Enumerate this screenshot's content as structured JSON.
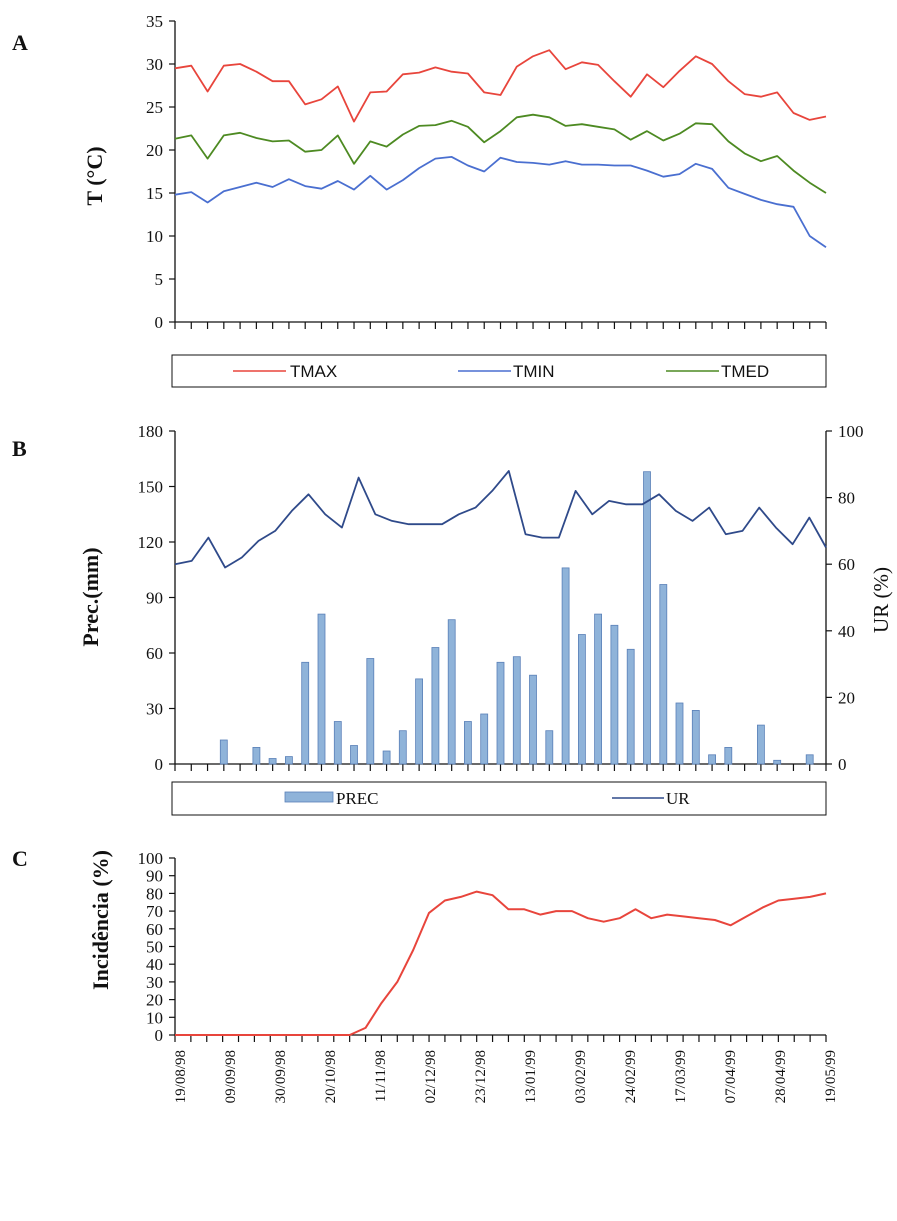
{
  "colors": {
    "tmax": "#e8453c",
    "tmin": "#4a6fd0",
    "tmed": "#4d8a22",
    "ur": "#2f4a8a",
    "prec": "#8fb3d9",
    "incid": "#e8453c"
  },
  "date_labels": [
    "19/08/98",
    "09/09/98",
    "30/09/98",
    "20/10/98",
    "11/11/98",
    "02/12/98",
    "23/12/98",
    "13/01/99",
    "03/02/99",
    "24/02/99",
    "17/03/99",
    "07/04/99",
    "28/04/99",
    "19/05/99"
  ],
  "chart_data": [
    {
      "panel": "A",
      "type": "line",
      "ylabel": "T (°C)",
      "ylim": [
        0,
        35
      ],
      "yticks": [
        0,
        5,
        10,
        15,
        20,
        25,
        30,
        35
      ],
      "legend": [
        "TMAX",
        "TMIN",
        "TMED"
      ],
      "series": [
        {
          "name": "TMAX",
          "values": [
            29.5,
            29.8,
            26.8,
            29.8,
            30.0,
            29.1,
            28.0,
            28.0,
            25.3,
            25.9,
            27.4,
            23.3,
            26.7,
            26.8,
            28.8,
            29.0,
            29.6,
            29.1,
            28.9,
            26.7,
            26.4,
            29.7,
            30.9,
            31.6,
            29.4,
            30.2,
            29.9,
            28.0,
            26.2,
            28.8,
            27.3,
            29.2,
            30.9,
            30.0,
            28.0,
            26.5,
            26.2,
            26.7,
            24.3,
            23.5,
            23.9
          ]
        },
        {
          "name": "TMIN",
          "values": [
            14.8,
            15.1,
            13.9,
            15.2,
            15.7,
            16.2,
            15.7,
            16.6,
            15.8,
            15.5,
            16.4,
            15.4,
            17.0,
            15.4,
            16.5,
            17.9,
            19.0,
            19.2,
            18.2,
            17.5,
            19.1,
            18.6,
            18.5,
            18.3,
            18.7,
            18.3,
            18.3,
            18.2,
            18.2,
            17.6,
            16.9,
            17.2,
            18.4,
            17.8,
            15.6,
            14.9,
            14.2,
            13.7,
            13.4,
            10.0,
            8.7
          ]
        },
        {
          "name": "TMED",
          "values": [
            21.3,
            21.7,
            19.0,
            21.7,
            22.0,
            21.4,
            21.0,
            21.1,
            19.8,
            20.0,
            21.7,
            18.4,
            21.0,
            20.4,
            21.8,
            22.8,
            22.9,
            23.4,
            22.7,
            20.9,
            22.2,
            23.8,
            24.1,
            23.8,
            22.8,
            23.0,
            22.7,
            22.4,
            21.2,
            22.2,
            21.1,
            21.9,
            23.1,
            23.0,
            21.0,
            19.6,
            18.7,
            19.3,
            17.6,
            16.2,
            15.0
          ]
        }
      ]
    },
    {
      "panel": "B",
      "type": "bar",
      "ylabel": "Prec.(mm)",
      "ylim": [
        0,
        180
      ],
      "yticks": [
        0,
        30,
        60,
        90,
        120,
        150,
        180
      ],
      "y2label": "UR (%)",
      "y2lim": [
        0,
        100
      ],
      "y2ticks": [
        0,
        20,
        40,
        60,
        80,
        100
      ],
      "legend": [
        "PREC",
        "UR"
      ],
      "series": [
        {
          "name": "PREC",
          "values": [
            0,
            0,
            13,
            0,
            9,
            3,
            4,
            55,
            81,
            23,
            10,
            57,
            7,
            18,
            46,
            63,
            78,
            23,
            27,
            55,
            58,
            48,
            18,
            106,
            70,
            81,
            75,
            62,
            158,
            97,
            33,
            29,
            5,
            9,
            0,
            21,
            2,
            0,
            5,
            0
          ]
        },
        {
          "name": "UR",
          "values": [
            60,
            61,
            68,
            59,
            62,
            67,
            70,
            76,
            81,
            75,
            71,
            86,
            75,
            73,
            72,
            72,
            72,
            75,
            77,
            82,
            88,
            69,
            68,
            68,
            82,
            75,
            79,
            78,
            78,
            81,
            76,
            73,
            77,
            69,
            70,
            77,
            71,
            66,
            74,
            65
          ]
        }
      ]
    },
    {
      "panel": "C",
      "type": "line",
      "ylabel": "Incidência (%)",
      "ylim": [
        0,
        100
      ],
      "yticks": [
        0,
        10,
        20,
        30,
        40,
        50,
        60,
        70,
        80,
        90,
        100
      ],
      "series": [
        {
          "name": "",
          "values": [
            0,
            0,
            0,
            0,
            0,
            0,
            0,
            0,
            0,
            0,
            0,
            0,
            4,
            18,
            30,
            48,
            69,
            76,
            78,
            81,
            79,
            71,
            71,
            68,
            70,
            70,
            66,
            64,
            66,
            71,
            66,
            68,
            67,
            66,
            65,
            62,
            67,
            72,
            76,
            77,
            78,
            80
          ]
        }
      ]
    }
  ]
}
